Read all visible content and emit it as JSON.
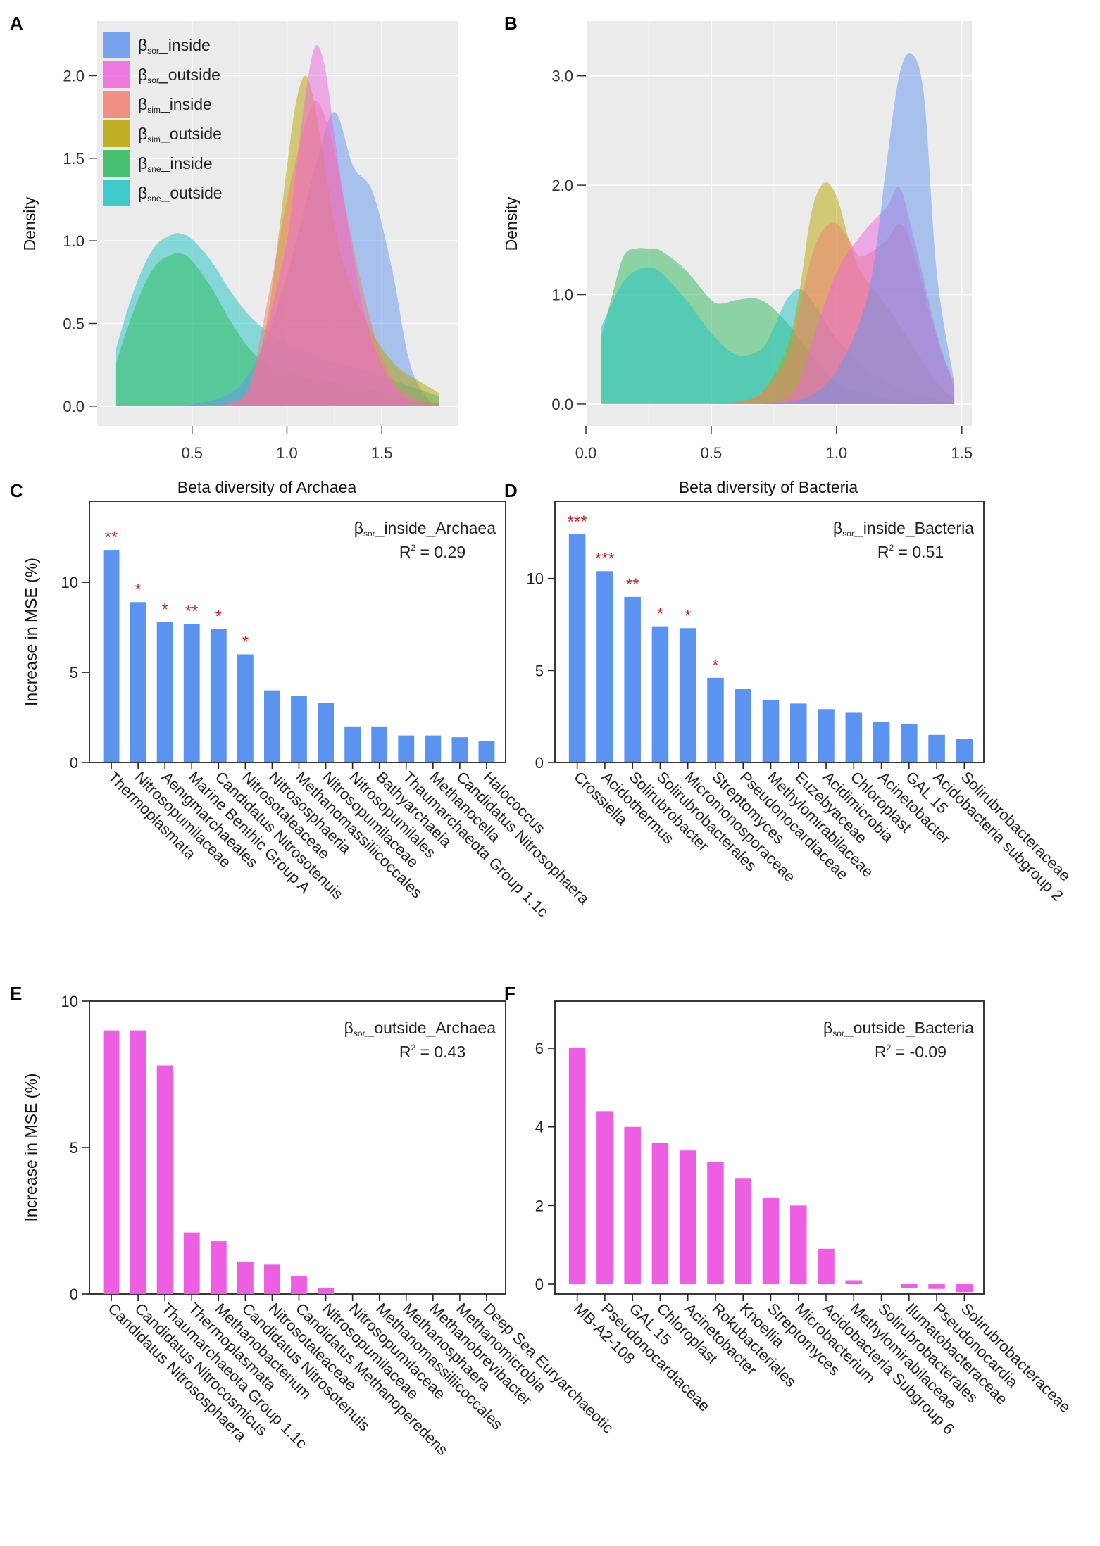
{
  "colors": {
    "sor_inside": "#6495ED",
    "sor_outside": "#EE66DD",
    "sim_inside": "#F08070",
    "sim_outside": "#B8A400",
    "sne_inside": "#2EBA5A",
    "sne_outside": "#20C4C4",
    "bar_inside": "#5B93F0",
    "bar_outside": "#EE5EE3",
    "star": "#CC2222",
    "panel_bg": "#EBEBEB"
  },
  "chart_data": [
    {
      "panel": "A",
      "type": "area",
      "xlabel": "Beta diversity of Archaea",
      "ylabel": "Density",
      "xlim": [
        0.0,
        1.9
      ],
      "ylim": [
        -0.12,
        2.33
      ],
      "xticks": [
        "0.5",
        "1.0",
        "1.5"
      ],
      "xtick_values": [
        0.5,
        1.0,
        1.5
      ],
      "yticks": [
        "0.0",
        "0.5",
        "1.0",
        "1.5",
        "2.0"
      ],
      "ytick_values": [
        0.0,
        0.5,
        1.0,
        1.5,
        2.0
      ],
      "legend": [
        {
          "key": "sor_inside",
          "greek": "β",
          "sub": "sor",
          "suffix": "_inside"
        },
        {
          "key": "sor_outside",
          "greek": "β",
          "sub": "sor",
          "suffix": "_outside"
        },
        {
          "key": "sim_inside",
          "greek": "β",
          "sub": "sim",
          "suffix": "_inside"
        },
        {
          "key": "sim_outside",
          "greek": "β",
          "sub": "sim",
          "suffix": "_outside"
        },
        {
          "key": "sne_inside",
          "greek": "β",
          "sub": "sne",
          "suffix": "_inside"
        },
        {
          "key": "sne_outside",
          "greek": "β",
          "sub": "sne",
          "suffix": "_outside"
        }
      ],
      "series": [
        {
          "key": "sne_outside",
          "x": [
            0.1,
            0.2,
            0.3,
            0.4,
            0.45,
            0.5,
            0.6,
            0.7,
            0.8,
            0.9,
            1.0,
            1.1,
            1.2,
            1.3,
            1.4,
            1.5,
            1.6,
            1.7,
            1.8
          ],
          "y": [
            0.35,
            0.72,
            0.96,
            1.04,
            1.04,
            1.01,
            0.88,
            0.7,
            0.55,
            0.45,
            0.38,
            0.33,
            0.28,
            0.25,
            0.22,
            0.18,
            0.14,
            0.1,
            0.06
          ]
        },
        {
          "key": "sne_inside",
          "x": [
            0.1,
            0.2,
            0.3,
            0.4,
            0.45,
            0.5,
            0.6,
            0.7,
            0.8,
            0.9,
            1.0,
            1.1,
            1.2,
            1.3,
            1.4,
            1.5,
            1.6,
            1.7,
            1.8
          ],
          "y": [
            0.26,
            0.6,
            0.84,
            0.92,
            0.92,
            0.88,
            0.72,
            0.52,
            0.35,
            0.25,
            0.2,
            0.17,
            0.15,
            0.13,
            0.11,
            0.08,
            0.05,
            0.03,
            0.02
          ]
        },
        {
          "key": "sor_inside",
          "x": [
            0.45,
            0.55,
            0.65,
            0.75,
            0.85,
            0.95,
            1.05,
            1.15,
            1.25,
            1.35,
            1.45,
            1.55,
            1.65,
            1.75
          ],
          "y": [
            0.0,
            0.02,
            0.05,
            0.12,
            0.3,
            0.6,
            1.0,
            1.45,
            1.78,
            1.45,
            1.3,
            0.85,
            0.25,
            0.03
          ]
        },
        {
          "key": "sim_outside",
          "x": [
            0.6,
            0.7,
            0.8,
            0.9,
            1.0,
            1.05,
            1.1,
            1.15,
            1.2,
            1.25,
            1.3,
            1.4,
            1.5,
            1.6,
            1.7,
            1.8
          ],
          "y": [
            0.0,
            0.02,
            0.1,
            0.55,
            1.45,
            1.85,
            2.0,
            1.8,
            1.45,
            1.1,
            0.85,
            0.55,
            0.35,
            0.22,
            0.15,
            0.08
          ]
        },
        {
          "key": "sim_inside",
          "x": [
            0.6,
            0.7,
            0.8,
            0.9,
            1.0,
            1.05,
            1.1,
            1.15,
            1.2,
            1.25,
            1.3,
            1.4,
            1.5,
            1.6,
            1.7,
            1.8
          ],
          "y": [
            0.0,
            0.02,
            0.12,
            0.65,
            1.25,
            1.5,
            1.72,
            1.85,
            1.75,
            1.55,
            1.25,
            0.7,
            0.3,
            0.1,
            0.03,
            0.01
          ]
        },
        {
          "key": "sor_outside",
          "x": [
            0.6,
            0.7,
            0.8,
            0.9,
            1.0,
            1.05,
            1.1,
            1.15,
            1.2,
            1.25,
            1.3,
            1.4,
            1.5,
            1.6,
            1.7,
            1.8
          ],
          "y": [
            0.0,
            0.02,
            0.1,
            0.5,
            1.0,
            1.45,
            1.9,
            2.18,
            2.05,
            1.65,
            1.25,
            0.6,
            0.25,
            0.08,
            0.02,
            0.01
          ]
        }
      ]
    },
    {
      "panel": "B",
      "type": "area",
      "xlabel": "Beta diversity of Bacteria",
      "ylabel": "Density",
      "xlim": [
        0.0,
        1.54
      ],
      "ylim": [
        -0.2,
        3.5
      ],
      "xticks": [
        "0.0",
        "0.5",
        "1.0",
        "1.5"
      ],
      "xtick_values": [
        0.0,
        0.5,
        1.0,
        1.5
      ],
      "yticks": [
        "0.0",
        "1.0",
        "2.0",
        "3.0"
      ],
      "ytick_values": [
        0.0,
        1.0,
        2.0,
        3.0
      ],
      "series": [
        {
          "key": "sne_inside",
          "x": [
            0.06,
            0.1,
            0.15,
            0.2,
            0.25,
            0.3,
            0.4,
            0.5,
            0.55,
            0.6,
            0.7,
            0.8,
            0.9,
            1.0,
            1.1,
            1.2,
            1.3,
            1.4,
            1.47
          ],
          "y": [
            0.6,
            0.95,
            1.35,
            1.42,
            1.42,
            1.4,
            1.22,
            0.95,
            0.92,
            0.95,
            0.95,
            0.75,
            0.45,
            0.2,
            0.1,
            0.05,
            0.02,
            0.01,
            0.0
          ]
        },
        {
          "key": "sne_outside",
          "x": [
            0.06,
            0.1,
            0.15,
            0.2,
            0.25,
            0.3,
            0.4,
            0.5,
            0.6,
            0.7,
            0.75,
            0.8,
            0.85,
            0.9,
            1.0,
            1.1,
            1.2,
            1.3,
            1.4,
            1.47
          ],
          "y": [
            0.7,
            0.9,
            1.12,
            1.22,
            1.25,
            1.2,
            0.95,
            0.65,
            0.45,
            0.5,
            0.7,
            0.95,
            1.05,
            0.95,
            0.6,
            0.35,
            0.2,
            0.1,
            0.04,
            0.01
          ]
        },
        {
          "key": "sim_outside",
          "x": [
            0.5,
            0.6,
            0.7,
            0.8,
            0.85,
            0.9,
            0.95,
            1.0,
            1.05,
            1.1,
            1.2,
            1.3,
            1.4,
            1.47
          ],
          "y": [
            0.0,
            0.02,
            0.1,
            0.5,
            1.0,
            1.75,
            2.02,
            1.9,
            1.5,
            1.2,
            0.9,
            0.55,
            0.2,
            0.05
          ]
        },
        {
          "key": "sim_inside",
          "x": [
            0.5,
            0.6,
            0.7,
            0.8,
            0.85,
            0.9,
            0.95,
            1.0,
            1.05,
            1.1,
            1.2,
            1.25,
            1.3,
            1.4,
            1.47
          ],
          "y": [
            0.0,
            0.02,
            0.1,
            0.4,
            0.85,
            1.35,
            1.6,
            1.65,
            1.5,
            1.35,
            1.5,
            1.65,
            1.45,
            0.6,
            0.2
          ]
        },
        {
          "key": "sor_outside",
          "x": [
            0.7,
            0.8,
            0.85,
            0.9,
            1.0,
            1.1,
            1.2,
            1.25,
            1.3,
            1.4,
            1.47
          ],
          "y": [
            0.0,
            0.05,
            0.2,
            0.55,
            1.2,
            1.55,
            1.8,
            1.98,
            1.6,
            0.65,
            0.15
          ]
        },
        {
          "key": "sor_inside",
          "x": [
            0.7,
            0.8,
            0.9,
            1.0,
            1.1,
            1.15,
            1.2,
            1.25,
            1.3,
            1.35,
            1.4,
            1.47
          ],
          "y": [
            0.0,
            0.02,
            0.08,
            0.3,
            0.8,
            1.3,
            2.2,
            3.0,
            3.2,
            2.8,
            1.2,
            0.2
          ]
        }
      ]
    },
    {
      "panel": "C",
      "type": "bar",
      "ylabel": "Increase in MSE (%)",
      "ylim": [
        0,
        14.5
      ],
      "yticks": [
        "0",
        "5",
        "10"
      ],
      "ytick_values": [
        0,
        5,
        10
      ],
      "annotation_main": "_inside_Archaea",
      "annotation_sub": "sor",
      "r2_value": " = 0.29",
      "r2_label": "R",
      "r2_sup": "2",
      "categories": [
        "Thermoplasmata",
        "Nitrosopumilaceae",
        "Aenigmarchaeales",
        "Marine Benthic Group A",
        "Candidatus Nitrosotenuis",
        "Nitrosotaleaceae",
        "Nitrososphaeria",
        "Methanomassiliicoccales",
        "Nitrosopumilaceae",
        "Nitrosopumilales",
        "Bathyarchaeia",
        "Thaumarchaeota Group 1.1c",
        "Methanocella",
        "Candidatus Nitrosophaera",
        "Halococcus"
      ],
      "values": [
        11.8,
        8.9,
        7.8,
        7.7,
        7.4,
        6.0,
        4.0,
        3.7,
        3.3,
        2.0,
        2.0,
        1.5,
        1.5,
        1.4,
        1.2
      ],
      "stars": [
        "**",
        "*",
        "*",
        "**",
        "*",
        "*",
        "",
        "",
        "",
        "",
        "",
        "",
        "",
        "",
        ""
      ]
    },
    {
      "panel": "D",
      "type": "bar",
      "ylim": [
        0,
        14.2
      ],
      "yticks": [
        "0",
        "5",
        "10"
      ],
      "ytick_values": [
        0,
        5,
        10
      ],
      "annotation_main": "_inside_Bacteria",
      "annotation_sub": "sor",
      "r2_value": " = 0.51",
      "r2_label": "R",
      "r2_sup": "2",
      "categories": [
        "Crossiella",
        "Acidothermus",
        "Solirubrobacter",
        "Solirubrobacterales",
        "Micromonosporaceae",
        "Streptomyces",
        "Pseudonocardiaceae",
        "Methylomirabilaceae",
        "Euzebyaceae",
        "Acidimicrobia",
        "Chloroplast",
        "Acinetobacter",
        "GAL 15",
        "Acidobacteria subgroup 2",
        "Solirubrobacteraceae"
      ],
      "values": [
        12.4,
        10.4,
        9.0,
        7.4,
        7.3,
        4.6,
        4.0,
        3.4,
        3.2,
        2.9,
        2.7,
        2.2,
        2.1,
        1.5,
        1.3
      ],
      "stars": [
        "***",
        "***",
        "**",
        "*",
        "*",
        "*",
        "",
        "",
        "",
        "",
        "",
        "",
        "",
        "",
        ""
      ]
    },
    {
      "panel": "E",
      "type": "bar",
      "ylabel": "Increase in MSE (%)",
      "ylim": [
        0,
        10
      ],
      "yticks": [
        "0",
        "5",
        "10"
      ],
      "ytick_values": [
        0,
        5,
        10
      ],
      "annotation_main": "_outside_Archaea",
      "annotation_sub": "sor",
      "r2_value": " = 0.43",
      "r2_label": "R",
      "r2_sup": "2",
      "categories": [
        "Candidatus Nitrososphaera",
        "Candidatus Nitrocosmicus",
        "Thaumarchaeota Group 1.1c",
        "Thermoplasmata",
        "Methanobacterium",
        "Candidatus Nitrosotenuis",
        "Nitrosotaleaceae",
        "Candidatus Methanoperedens",
        "Nitrosopumilaceae",
        "Nitrosopumilaceae",
        "Methanomassiliicoccales",
        "Methanosphaera",
        "Methanobrevibacter",
        "Methanomicrobia",
        "Deep Sea Euryarchaeotic"
      ],
      "values": [
        9.0,
        9.0,
        7.8,
        2.1,
        1.8,
        1.1,
        1.0,
        0.6,
        0.2,
        0,
        0,
        0,
        0,
        0,
        0
      ],
      "stars": []
    },
    {
      "panel": "F",
      "type": "bar",
      "ylim": [
        -0.25,
        7.2
      ],
      "yticks": [
        "0",
        "2",
        "4",
        "6"
      ],
      "ytick_values": [
        0,
        2,
        4,
        6
      ],
      "annotation_main": "_outside_Bacteria",
      "annotation_sub": "sor",
      "r2_value": " = -0.09",
      "r2_label": "R",
      "r2_sup": "2",
      "categories": [
        "MB-A2-108",
        "Pseudonocardiaceae",
        "GAL 15",
        "Chloroplast",
        "Acinetobacter",
        "Rokubacteriales",
        "Knoellia",
        "Streptomyces",
        "Microbacterium",
        "Acidobacteria Subgroup 6",
        "Methylomirabilaceae",
        "Solirubrobacterales",
        "Ilumatobacteraceae",
        "Pseudonocardia",
        "Solirubrobacteraceae"
      ],
      "values": [
        6.0,
        4.4,
        4.0,
        3.6,
        3.4,
        3.1,
        2.7,
        2.2,
        2.0,
        0.9,
        0.1,
        0.0,
        -0.1,
        -0.12,
        -0.2
      ],
      "stars": []
    }
  ]
}
